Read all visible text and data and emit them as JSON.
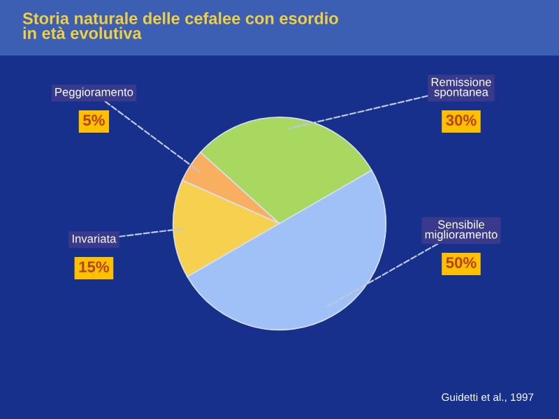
{
  "chart_data": {
    "type": "pie",
    "title": "Storia naturale delle cefalee con esordio\nin età evolutiva",
    "categories": [
      "Remissione\nspontanea",
      "Peggioramento",
      "Invariata",
      "Sensibile\nmiglioramento"
    ],
    "values": [
      30,
      5,
      15,
      50
    ],
    "colors": [
      "#a8d860",
      "#f8b060",
      "#f8d050",
      "#a0c0f8"
    ],
    "value_labels": [
      "30%",
      "5%",
      "15%",
      "50%"
    ],
    "annotations": [
      "Guidetti et al., 1997"
    ]
  }
}
